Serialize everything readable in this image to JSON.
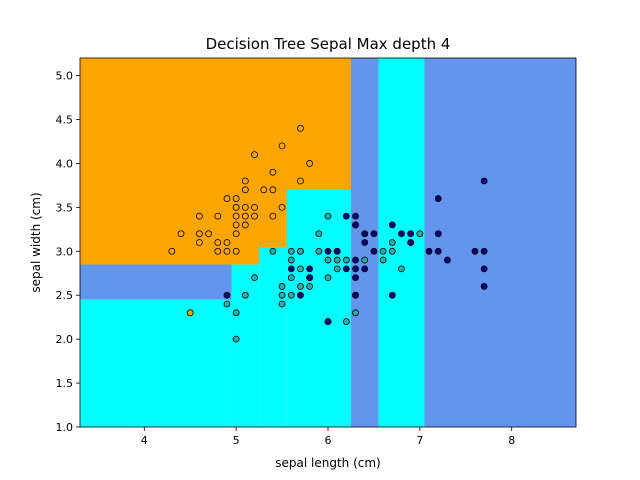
{
  "chart_data": {
    "type": "scatter",
    "title": "Decision Tree Sepal Max depth 4",
    "xlabel": "sepal length (cm)",
    "ylabel": "sepal width (cm)",
    "xlim": [
      3.3,
      8.7
    ],
    "ylim": [
      1.0,
      5.2
    ],
    "xticks": [
      "4",
      "5",
      "6",
      "7",
      "8"
    ],
    "yticks": [
      "1.0",
      "1.5",
      "2.0",
      "2.5",
      "3.0",
      "3.5",
      "4.0",
      "4.5",
      "5.0"
    ],
    "grid": false,
    "legend": "none",
    "region_colors": {
      "setosa": "#ffa500",
      "versicolor": "#00ffff",
      "virginica": "#6495ed"
    },
    "point_colors": {
      "setosa": "#ffa500",
      "versicolor": "#20b2aa",
      "virginica": "#000080"
    },
    "regions": [
      {
        "class": "setosa",
        "x": [
          3.3,
          6.25
        ],
        "y": [
          2.85,
          5.2
        ]
      },
      {
        "class": "virginica",
        "x": [
          3.3,
          4.95
        ],
        "y": [
          2.45,
          2.85
        ]
      },
      {
        "class": "versicolor",
        "x": [
          3.3,
          4.95
        ],
        "y": [
          1.0,
          2.45
        ]
      },
      {
        "class": "versicolor",
        "x": [
          4.95,
          5.25
        ],
        "y": [
          1.0,
          2.85
        ]
      },
      {
        "class": "versicolor",
        "x": [
          5.25,
          5.55
        ],
        "y": [
          1.0,
          3.05
        ]
      },
      {
        "class": "versicolor",
        "x": [
          5.55,
          6.25
        ],
        "y": [
          1.0,
          3.7
        ]
      },
      {
        "class": "virginica",
        "x": [
          6.25,
          6.55
        ],
        "y": [
          1.0,
          5.2
        ]
      },
      {
        "class": "versicolor",
        "x": [
          6.55,
          7.05
        ],
        "y": [
          1.0,
          5.2
        ]
      },
      {
        "class": "virginica",
        "x": [
          7.05,
          8.7
        ],
        "y": [
          1.0,
          5.2
        ]
      }
    ],
    "series": [
      {
        "class": "setosa",
        "points": [
          [
            4.3,
            3.0
          ],
          [
            4.4,
            3.2
          ],
          [
            4.6,
            3.4
          ],
          [
            4.6,
            3.2
          ],
          [
            4.6,
            3.1
          ],
          [
            4.7,
            3.2
          ],
          [
            4.8,
            3.4
          ],
          [
            4.8,
            3.1
          ],
          [
            4.8,
            3.0
          ],
          [
            4.9,
            3.1
          ],
          [
            4.9,
            3.0
          ],
          [
            4.9,
            3.6
          ],
          [
            5.0,
            3.6
          ],
          [
            5.0,
            3.5
          ],
          [
            5.0,
            3.4
          ],
          [
            5.0,
            3.3
          ],
          [
            5.0,
            3.2
          ],
          [
            5.0,
            3.0
          ],
          [
            5.1,
            3.8
          ],
          [
            5.1,
            3.7
          ],
          [
            5.1,
            3.5
          ],
          [
            5.1,
            3.4
          ],
          [
            5.1,
            3.3
          ],
          [
            5.2,
            4.1
          ],
          [
            5.2,
            3.5
          ],
          [
            5.2,
            3.4
          ],
          [
            5.3,
            3.7
          ],
          [
            5.4,
            3.9
          ],
          [
            5.4,
            3.7
          ],
          [
            5.4,
            3.4
          ],
          [
            5.5,
            4.2
          ],
          [
            5.5,
            3.5
          ],
          [
            5.7,
            4.4
          ],
          [
            5.7,
            3.8
          ],
          [
            5.8,
            4.0
          ],
          [
            5.7,
            3.0
          ],
          [
            4.5,
            2.3
          ],
          [
            5.0,
            3.5
          ]
        ]
      },
      {
        "class": "versicolor",
        "points": [
          [
            4.9,
            2.4
          ],
          [
            5.0,
            2.0
          ],
          [
            5.0,
            2.3
          ],
          [
            5.1,
            2.5
          ],
          [
            5.2,
            2.7
          ],
          [
            5.4,
            3.0
          ],
          [
            5.5,
            2.4
          ],
          [
            5.5,
            2.5
          ],
          [
            5.5,
            2.6
          ],
          [
            5.6,
            2.5
          ],
          [
            5.6,
            2.7
          ],
          [
            5.6,
            2.9
          ],
          [
            5.6,
            3.0
          ],
          [
            5.7,
            2.6
          ],
          [
            5.7,
            2.8
          ],
          [
            5.7,
            3.0
          ],
          [
            5.8,
            2.6
          ],
          [
            5.8,
            2.7
          ],
          [
            5.9,
            3.2
          ],
          [
            5.9,
            3.0
          ],
          [
            6.0,
            2.2
          ],
          [
            6.0,
            2.7
          ],
          [
            6.0,
            2.9
          ],
          [
            6.0,
            3.4
          ],
          [
            6.1,
            2.8
          ],
          [
            6.1,
            2.9
          ],
          [
            6.1,
            3.0
          ],
          [
            6.2,
            2.2
          ],
          [
            6.2,
            2.9
          ],
          [
            6.3,
            2.3
          ],
          [
            6.3,
            2.5
          ],
          [
            6.3,
            3.3
          ],
          [
            6.4,
            2.9
          ],
          [
            6.4,
            3.2
          ],
          [
            6.6,
            2.9
          ],
          [
            6.6,
            3.0
          ],
          [
            6.7,
            3.1
          ],
          [
            6.7,
            3.0
          ],
          [
            6.8,
            2.8
          ],
          [
            6.9,
            3.1
          ],
          [
            7.0,
            3.2
          ]
        ]
      },
      {
        "class": "virginica",
        "points": [
          [
            4.9,
            2.5
          ],
          [
            5.6,
            2.8
          ],
          [
            5.7,
            2.5
          ],
          [
            5.8,
            2.7
          ],
          [
            5.8,
            2.8
          ],
          [
            6.0,
            2.2
          ],
          [
            6.0,
            3.0
          ],
          [
            6.1,
            3.0
          ],
          [
            6.2,
            2.8
          ],
          [
            6.2,
            3.4
          ],
          [
            6.3,
            2.5
          ],
          [
            6.3,
            2.7
          ],
          [
            6.3,
            2.8
          ],
          [
            6.3,
            2.9
          ],
          [
            6.3,
            3.3
          ],
          [
            6.3,
            3.4
          ],
          [
            6.4,
            2.8
          ],
          [
            6.4,
            3.1
          ],
          [
            6.4,
            3.2
          ],
          [
            6.5,
            3.0
          ],
          [
            6.5,
            3.2
          ],
          [
            6.7,
            2.5
          ],
          [
            6.7,
            3.3
          ],
          [
            6.8,
            3.2
          ],
          [
            6.9,
            3.1
          ],
          [
            6.9,
            3.2
          ],
          [
            7.1,
            3.0
          ],
          [
            7.2,
            3.6
          ],
          [
            7.2,
            3.2
          ],
          [
            7.2,
            3.0
          ],
          [
            7.3,
            2.9
          ],
          [
            7.6,
            3.0
          ],
          [
            7.7,
            3.8
          ],
          [
            7.7,
            3.0
          ],
          [
            7.7,
            2.8
          ],
          [
            7.7,
            2.6
          ]
        ]
      }
    ]
  }
}
